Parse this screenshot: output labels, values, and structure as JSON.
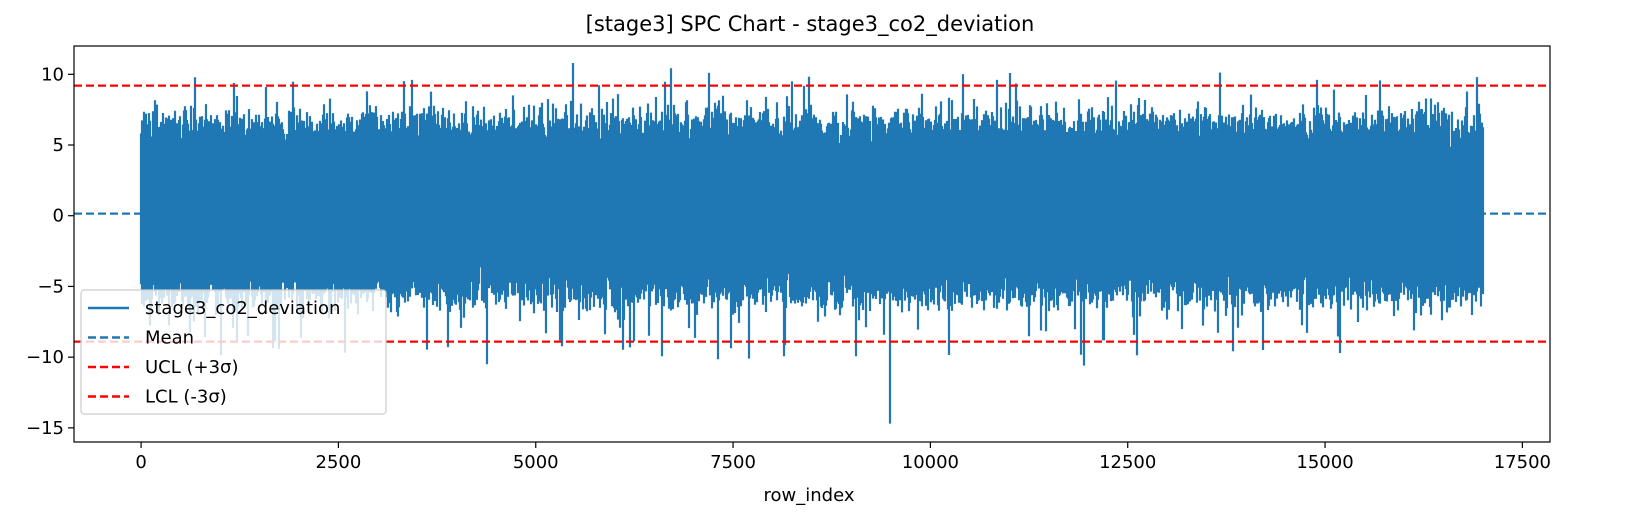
{
  "chart_data": {
    "type": "line",
    "title": "[stage3] SPC Chart - stage3_co2_deviation",
    "xlabel": "row_index",
    "ylabel": "",
    "xlim": [
      -850,
      17850
    ],
    "ylim": [
      -16,
      12
    ],
    "xticks": [
      0,
      2500,
      5000,
      7500,
      10000,
      12500,
      15000,
      17500
    ],
    "yticks": [
      10,
      5,
      0,
      -5,
      -10,
      -15
    ],
    "grid": false,
    "legend_position": "lower left",
    "colors": {
      "series": "#1f77b4",
      "mean": "#1f77b4",
      "limits": "#ff0000"
    },
    "series": [
      {
        "name": "stage3_co2_deviation",
        "style": "solid",
        "x_range": [
          0,
          17000
        ],
        "n_points": 17000,
        "typical_range": [
          -5.5,
          6.5
        ],
        "notable_points": [
          {
            "x": 3430,
            "y": 9.6
          },
          {
            "x": 4380,
            "y": -10.5
          },
          {
            "x": 5470,
            "y": 10.8
          },
          {
            "x": 7200,
            "y": 10.1
          },
          {
            "x": 8250,
            "y": 9.5
          },
          {
            "x": 9490,
            "y": -14.7
          },
          {
            "x": 10840,
            "y": 9.6
          },
          {
            "x": 11950,
            "y": -10.6
          },
          {
            "x": 14900,
            "y": 9.6
          },
          {
            "x": 16930,
            "y": 9.8
          }
        ]
      },
      {
        "name": "Mean",
        "style": "dashed",
        "value": 0.15
      },
      {
        "name": "UCL (+3σ)",
        "style": "dashed",
        "value": 9.2
      },
      {
        "name": "LCL (-3σ)",
        "style": "dashed",
        "value": -8.9
      }
    ]
  }
}
